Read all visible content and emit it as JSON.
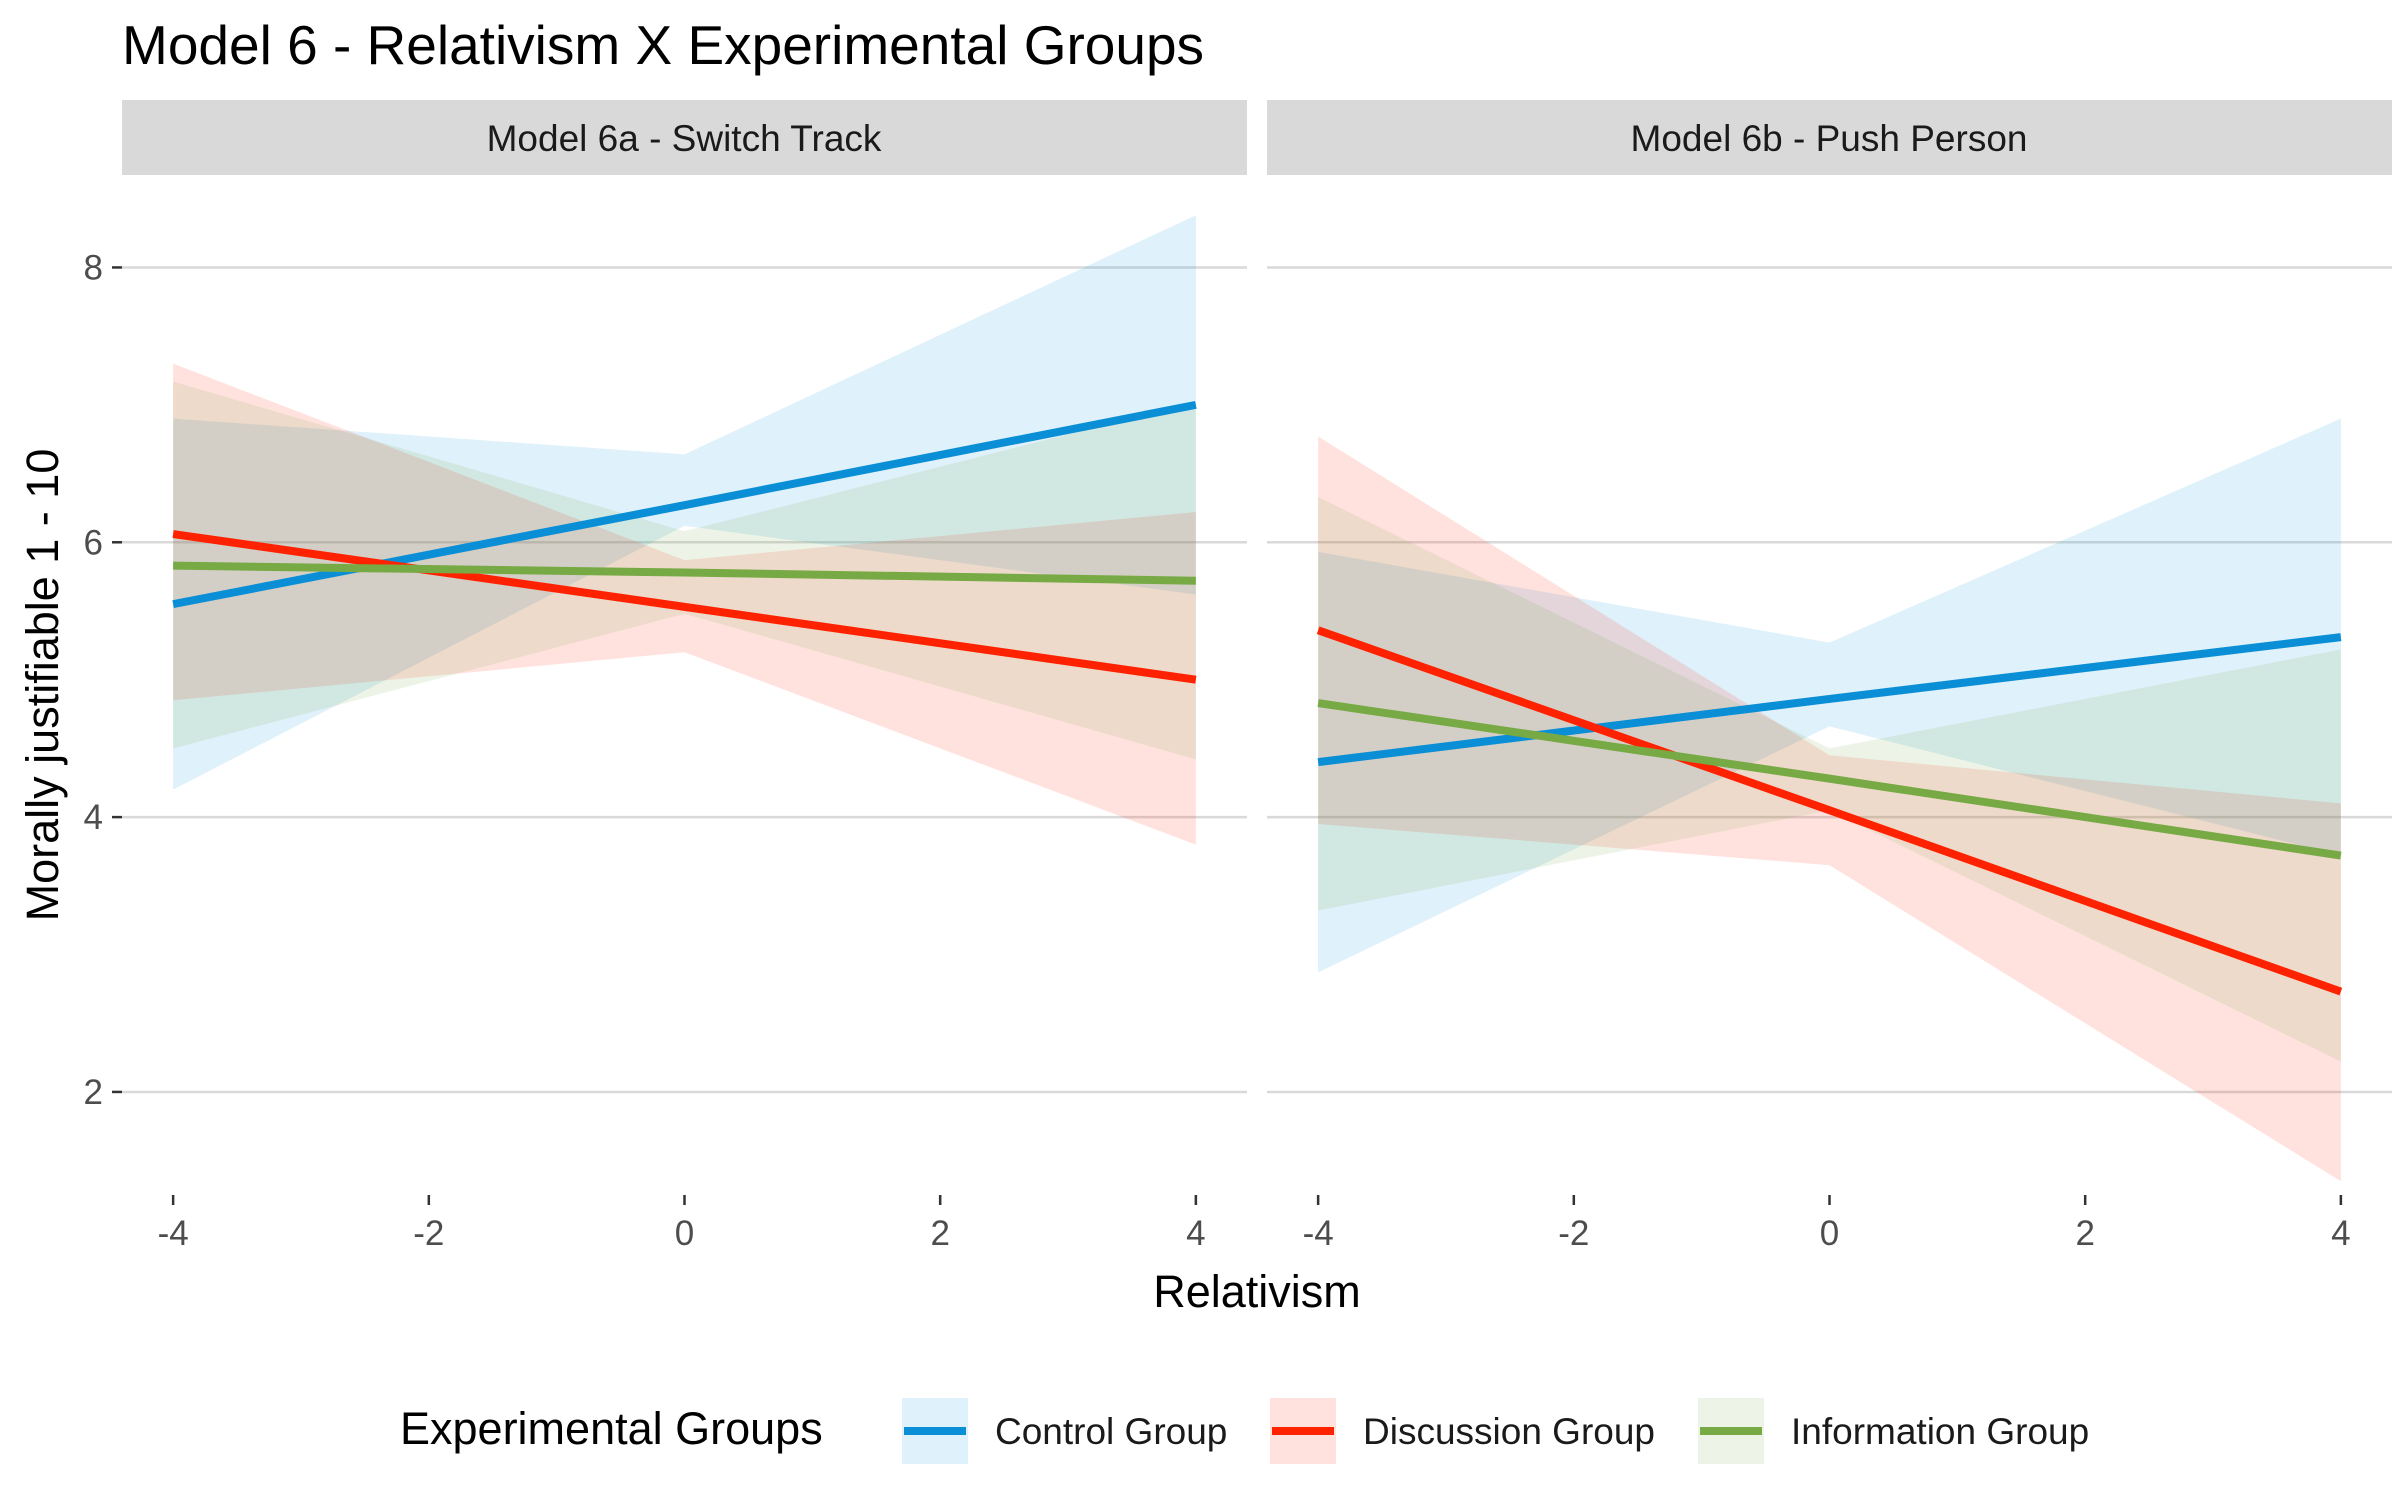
{
  "chart_data": {
    "type": "line",
    "title": "Model 6 - Relativism X Experimental Groups",
    "xlabel": "Relativism",
    "ylabel": "Morally justifiable 1 - 10",
    "x_ticks": [
      -4,
      -2,
      0,
      2,
      4
    ],
    "y_ticks": [
      2,
      4,
      6,
      8
    ],
    "xlim": [
      -4.4,
      4.4
    ],
    "ylim": [
      1.25,
      8.6
    ],
    "grid": "horizontal major gridlines",
    "legend": {
      "title": "Experimental Groups",
      "position": "bottom",
      "entries": [
        "Control Group",
        "Discussion Group",
        "Information Group"
      ]
    },
    "colors": {
      "Control Group": "#0a8fd6",
      "Discussion Group": "#ff2200",
      "Information Group": "#77aa44",
      "strip_background": "#d9d9d9",
      "gridline": "#d9d9d9"
    },
    "panels": [
      {
        "strip": "Model 6a - Switch Track",
        "series": [
          {
            "name": "Control Group",
            "x": [
              -4,
              0,
              4
            ],
            "y": [
              5.55,
              6.27,
              7.0
            ],
            "lower": [
              4.2,
              6.12,
              5.62
            ],
            "upper": [
              6.9,
              6.64,
              8.38
            ]
          },
          {
            "name": "Discussion Group",
            "x": [
              -4,
              0,
              4
            ],
            "y": [
              6.06,
              5.53,
              5.0
            ],
            "lower": [
              4.85,
              5.2,
              3.8
            ],
            "upper": [
              7.3,
              5.87,
              6.22
            ]
          },
          {
            "name": "Information Group",
            "x": [
              -4,
              0,
              4
            ],
            "y": [
              5.83,
              5.78,
              5.72
            ],
            "lower": [
              4.5,
              5.48,
              4.42
            ],
            "upper": [
              7.17,
              6.08,
              7.02
            ]
          }
        ]
      },
      {
        "strip": "Model 6b - Push Person",
        "series": [
          {
            "name": "Control Group",
            "x": [
              -4,
              0,
              4
            ],
            "y": [
              4.4,
              4.86,
              5.31
            ],
            "lower": [
              2.87,
              4.66,
              3.72
            ],
            "upper": [
              5.93,
              5.27,
              6.9
            ]
          },
          {
            "name": "Discussion Group",
            "x": [
              -4,
              0,
              4
            ],
            "y": [
              5.36,
              4.05,
              2.73
            ],
            "lower": [
              3.95,
              3.65,
              1.35
            ],
            "upper": [
              6.77,
              4.45,
              4.1
            ]
          },
          {
            "name": "Information Group",
            "x": [
              -4,
              0,
              4
            ],
            "y": [
              4.83,
              4.28,
              3.72
            ],
            "lower": [
              3.32,
              4.05,
              2.22
            ],
            "upper": [
              6.33,
              4.5,
              5.22
            ]
          }
        ]
      }
    ]
  }
}
